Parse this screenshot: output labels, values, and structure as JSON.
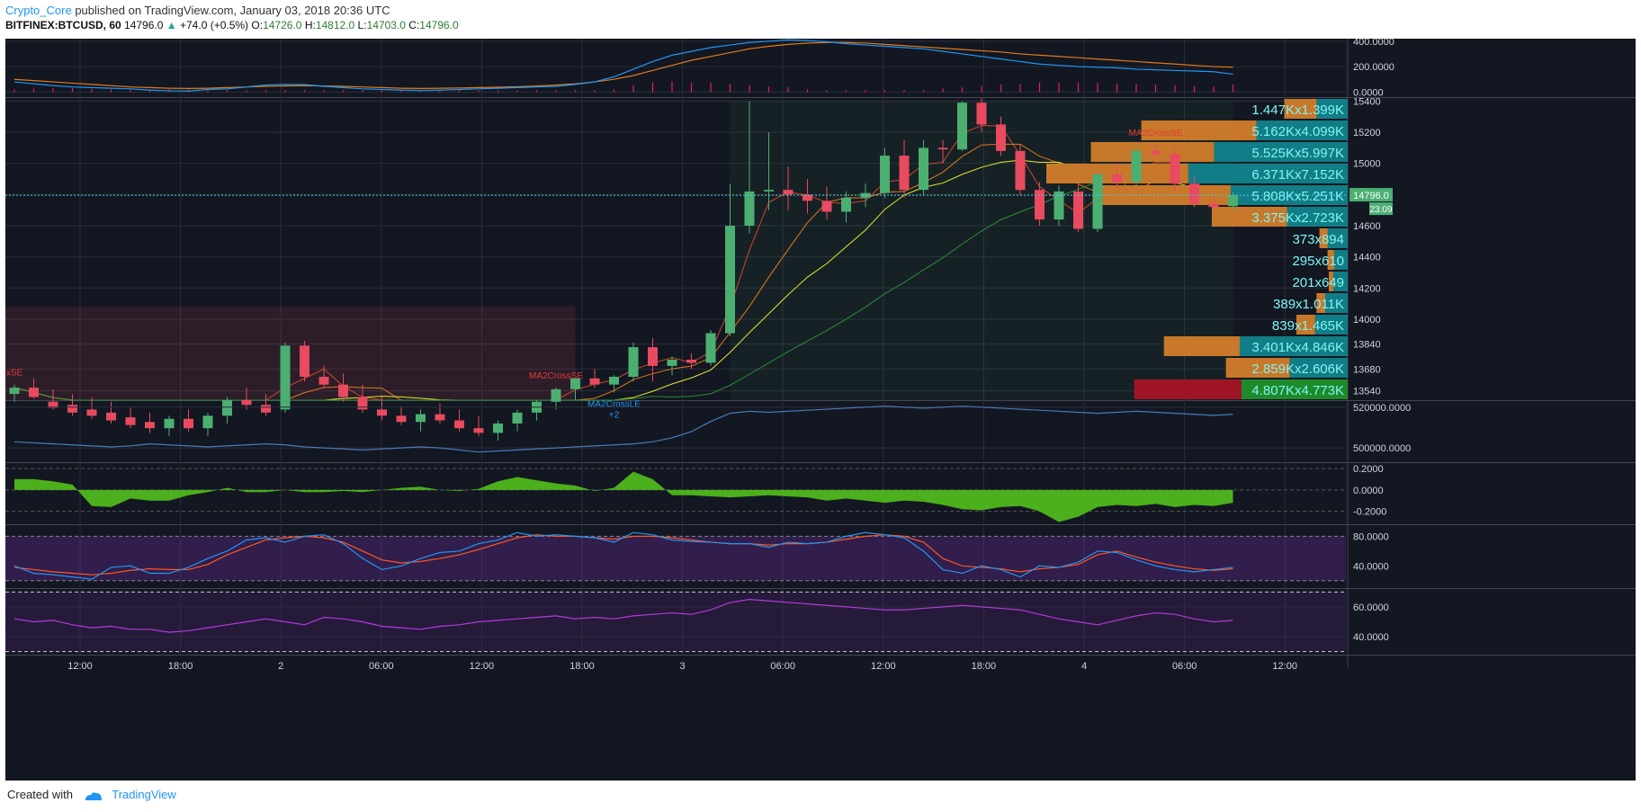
{
  "header": {
    "author": "Crypto_Core",
    "published_text": "published on TradingView.com, January 03, 2018 20:36 UTC",
    "symbol": "BITFINEX:BTCUSD, 60",
    "last": "14796.0",
    "change": "+74.0 (+0.5%)",
    "o_label": "O:",
    "o_value": "14726.0",
    "h_label": "H:",
    "h_value": "14812.0",
    "l_label": "L:",
    "l_value": "14703.0",
    "c_label": "C:",
    "c_value": "14796.0"
  },
  "footer": {
    "created_with": "Created with",
    "brand": "TradingView",
    "logo_icon": "tradingview-cloud-icon"
  },
  "colors": {
    "background": "#131722",
    "grid": "#2a2e39",
    "up": "#4caf72",
    "down": "#e84a5f",
    "volume_profile_up": "#117d86",
    "volume_profile_down": "#c8782a",
    "ma_yellow": "#e6e62c",
    "ma_orange": "#e07b1a",
    "ma_purple": "#b23bd8",
    "osc_green": "#4caf1c",
    "line_blue": "#2196f3"
  },
  "chart_data": {
    "type": "candlestick",
    "symbol": "BITFINEX:BTCUSD",
    "interval": "60",
    "x_tick_labels": [
      "12:00",
      "18:00",
      "2",
      "06:00",
      "12:00",
      "18:00",
      "3",
      "06:00",
      "12:00",
      "18:00",
      "4",
      "06:00",
      "12:00"
    ],
    "candles": [
      {
        "o": 13520,
        "h": 13580,
        "l": 13470,
        "c": 13560
      },
      {
        "o": 13560,
        "h": 13620,
        "l": 13490,
        "c": 13500
      },
      {
        "o": 13470,
        "h": 13550,
        "l": 13420,
        "c": 13430
      },
      {
        "o": 13450,
        "h": 13520,
        "l": 13380,
        "c": 13400
      },
      {
        "o": 13420,
        "h": 13500,
        "l": 13360,
        "c": 13380
      },
      {
        "o": 13400,
        "h": 13470,
        "l": 13330,
        "c": 13350
      },
      {
        "o": 13370,
        "h": 13430,
        "l": 13300,
        "c": 13320
      },
      {
        "o": 13340,
        "h": 13400,
        "l": 13270,
        "c": 13300
      },
      {
        "o": 13300,
        "h": 13380,
        "l": 13250,
        "c": 13360
      },
      {
        "o": 13360,
        "h": 13420,
        "l": 13280,
        "c": 13300
      },
      {
        "o": 13300,
        "h": 13400,
        "l": 13250,
        "c": 13380
      },
      {
        "o": 13380,
        "h": 13500,
        "l": 13330,
        "c": 13480
      },
      {
        "o": 13480,
        "h": 13560,
        "l": 13420,
        "c": 13450
      },
      {
        "o": 13450,
        "h": 13520,
        "l": 13380,
        "c": 13400
      },
      {
        "o": 13420,
        "h": 13850,
        "l": 13400,
        "c": 13830
      },
      {
        "o": 13830,
        "h": 13860,
        "l": 13600,
        "c": 13630
      },
      {
        "o": 13630,
        "h": 13700,
        "l": 13560,
        "c": 13580
      },
      {
        "o": 13580,
        "h": 13650,
        "l": 13470,
        "c": 13500
      },
      {
        "o": 13500,
        "h": 13580,
        "l": 13400,
        "c": 13420
      },
      {
        "o": 13420,
        "h": 13500,
        "l": 13350,
        "c": 13380
      },
      {
        "o": 13380,
        "h": 13440,
        "l": 13320,
        "c": 13340
      },
      {
        "o": 13340,
        "h": 13420,
        "l": 13280,
        "c": 13390
      },
      {
        "o": 13390,
        "h": 13460,
        "l": 13330,
        "c": 13350
      },
      {
        "o": 13350,
        "h": 13420,
        "l": 13280,
        "c": 13300
      },
      {
        "o": 13300,
        "h": 13380,
        "l": 13250,
        "c": 13270
      },
      {
        "o": 13270,
        "h": 13350,
        "l": 13220,
        "c": 13330
      },
      {
        "o": 13330,
        "h": 13420,
        "l": 13280,
        "c": 13400
      },
      {
        "o": 13400,
        "h": 13480,
        "l": 13350,
        "c": 13470
      },
      {
        "o": 13470,
        "h": 13560,
        "l": 13420,
        "c": 13550
      },
      {
        "o": 13550,
        "h": 13620,
        "l": 13480,
        "c": 13620
      },
      {
        "o": 13620,
        "h": 13680,
        "l": 13560,
        "c": 13580
      },
      {
        "o": 13580,
        "h": 13640,
        "l": 13530,
        "c": 13630
      },
      {
        "o": 13630,
        "h": 13850,
        "l": 13600,
        "c": 13820
      },
      {
        "o": 13820,
        "h": 13880,
        "l": 13600,
        "c": 13700
      },
      {
        "o": 13700,
        "h": 13760,
        "l": 13640,
        "c": 13740
      },
      {
        "o": 13740,
        "h": 13780,
        "l": 13680,
        "c": 13720
      },
      {
        "o": 13720,
        "h": 13930,
        "l": 13700,
        "c": 13910
      },
      {
        "o": 13910,
        "h": 14870,
        "l": 13890,
        "c": 14600
      },
      {
        "o": 14600,
        "h": 15400,
        "l": 14550,
        "c": 14820
      },
      {
        "o": 14820,
        "h": 15200,
        "l": 14700,
        "c": 14830
      },
      {
        "o": 14830,
        "h": 14980,
        "l": 14700,
        "c": 14800
      },
      {
        "o": 14800,
        "h": 14900,
        "l": 14680,
        "c": 14760
      },
      {
        "o": 14760,
        "h": 14850,
        "l": 14640,
        "c": 14690
      },
      {
        "o": 14690,
        "h": 14820,
        "l": 14620,
        "c": 14780
      },
      {
        "o": 14780,
        "h": 14870,
        "l": 14720,
        "c": 14810
      },
      {
        "o": 14810,
        "h": 15100,
        "l": 14780,
        "c": 15050
      },
      {
        "o": 15050,
        "h": 15150,
        "l": 14780,
        "c": 14830
      },
      {
        "o": 14830,
        "h": 15150,
        "l": 14800,
        "c": 15100
      },
      {
        "o": 15100,
        "h": 15150,
        "l": 15000,
        "c": 15090
      },
      {
        "o": 15090,
        "h": 15400,
        "l": 15080,
        "c": 15390
      },
      {
        "o": 15390,
        "h": 15420,
        "l": 15200,
        "c": 15250
      },
      {
        "o": 15250,
        "h": 15300,
        "l": 15050,
        "c": 15080
      },
      {
        "o": 15080,
        "h": 15120,
        "l": 14800,
        "c": 14830
      },
      {
        "o": 14830,
        "h": 14880,
        "l": 14600,
        "c": 14640
      },
      {
        "o": 14640,
        "h": 14860,
        "l": 14600,
        "c": 14820
      },
      {
        "o": 14820,
        "h": 14860,
        "l": 14560,
        "c": 14580
      },
      {
        "o": 14580,
        "h": 14950,
        "l": 14560,
        "c": 14930
      },
      {
        "o": 14930,
        "h": 15000,
        "l": 14840,
        "c": 14880
      },
      {
        "o": 14880,
        "h": 15120,
        "l": 14860,
        "c": 15080
      },
      {
        "o": 15080,
        "h": 15120,
        "l": 15040,
        "c": 15060
      },
      {
        "o": 15060,
        "h": 15100,
        "l": 14830,
        "c": 14870
      },
      {
        "o": 14870,
        "h": 14920,
        "l": 14720,
        "c": 14740
      },
      {
        "o": 14740,
        "h": 14790,
        "l": 14700,
        "c": 14720
      },
      {
        "o": 14726,
        "h": 14812,
        "l": 14703,
        "c": 14796
      }
    ],
    "main_axis": {
      "min": 13480,
      "max": 15420,
      "ticks": [
        15400,
        15200,
        15000,
        14800,
        14600,
        14400,
        14200,
        14000,
        13840,
        13680,
        13540
      ]
    },
    "last_price_label": "14796.0",
    "countdown_label": "23:09",
    "volume_profile": [
      {
        "label": "1.447Kx1.399K",
        "up": 1399,
        "down": 1447
      },
      {
        "label": "5.162Kx4.099K",
        "up": 4099,
        "down": 5162
      },
      {
        "label": "5.525Kx5.997K",
        "up": 5997,
        "down": 5525
      },
      {
        "label": "6.371Kx7.152K",
        "up": 7152,
        "down": 6371
      },
      {
        "label": "5.808Kx5.251K",
        "up": 5251,
        "down": 5808
      },
      {
        "label": "3.375Kx2.723K",
        "up": 2723,
        "down": 3375
      },
      {
        "label": "373x894",
        "up": 894,
        "down": 373
      },
      {
        "label": "295x610",
        "up": 610,
        "down": 295
      },
      {
        "label": "201x649",
        "up": 649,
        "down": 201
      },
      {
        "label": "389x1.011K",
        "up": 1011,
        "down": 389
      },
      {
        "label": "839x1.465K",
        "up": 1465,
        "down": 839
      },
      {
        "label": "3.401Kx4.846K",
        "up": 4846,
        "down": 3401
      },
      {
        "label": "2.859Kx2.606K",
        "up": 2606,
        "down": 2859
      },
      {
        "label": "4.807Kx4.773K",
        "up": 4773,
        "down": 4807
      }
    ],
    "signal_labels": [
      {
        "text": "MA2CrossLE",
        "bar": 31,
        "side": "below"
      },
      {
        "text": "+2",
        "bar": 31,
        "side": "below"
      },
      {
        "text": "MA2CrossSE",
        "bar": 28,
        "side": "above"
      },
      {
        "text": "MA2CrossSE",
        "bar": 59,
        "side": "above"
      },
      {
        "text": "xSE",
        "bar": 0,
        "side": "above"
      }
    ],
    "top_panel": {
      "ticks": [
        "400.0000",
        "200.0000",
        "0.0000"
      ],
      "min": -40,
      "max": 420,
      "blue": [
        80,
        65,
        50,
        40,
        35,
        30,
        25,
        15,
        10,
        8,
        20,
        25,
        40,
        55,
        60,
        58,
        45,
        35,
        25,
        20,
        15,
        12,
        15,
        20,
        25,
        30,
        35,
        40,
        45,
        60,
        80,
        120,
        180,
        240,
        290,
        320,
        350,
        370,
        390,
        400,
        410,
        405,
        395,
        380,
        370,
        360,
        350,
        340,
        320,
        300,
        280,
        260,
        240,
        220,
        210,
        200,
        195,
        190,
        180,
        175,
        170,
        165,
        160,
        140
      ],
      "orange": [
        100,
        90,
        80,
        70,
        60,
        50,
        40,
        35,
        30,
        28,
        30,
        35,
        40,
        45,
        48,
        50,
        48,
        45,
        40,
        35,
        30,
        28,
        30,
        32,
        35,
        38,
        42,
        48,
        55,
        65,
        80,
        100,
        130,
        170,
        210,
        250,
        280,
        310,
        340,
        360,
        375,
        385,
        390,
        390,
        385,
        375,
        365,
        355,
        345,
        335,
        325,
        315,
        300,
        290,
        280,
        270,
        260,
        250,
        240,
        230,
        220,
        210,
        200,
        195
      ]
    },
    "volume_panel": {
      "ticks": [
        "520000.0000",
        "500000.0000"
      ],
      "min": 493000,
      "max": 523000,
      "values": [
        503000,
        502500,
        502000,
        501500,
        501000,
        500500,
        501000,
        502000,
        501500,
        501000,
        500500,
        501000,
        501500,
        502000,
        501500,
        500500,
        500000,
        499500,
        499000,
        499500,
        500000,
        500500,
        500000,
        499000,
        498000,
        498500,
        499000,
        499500,
        500000,
        500500,
        501000,
        501500,
        502000,
        503000,
        505000,
        508000,
        513000,
        517000,
        518000,
        517500,
        518000,
        518500,
        519000,
        519500,
        520000,
        520500,
        520000,
        519500,
        520000,
        520500,
        520000,
        519500,
        519000,
        518500,
        518000,
        517500,
        517000,
        517500,
        518000,
        517500,
        517000,
        516500,
        516000,
        516500
      ]
    },
    "oscillator_panel": {
      "ticks": [
        "0.2000",
        "0.0000",
        "-0.2000"
      ],
      "min": -0.32,
      "max": 0.25,
      "values": [
        0.1,
        0.1,
        0.08,
        0.05,
        -0.15,
        -0.16,
        -0.08,
        -0.1,
        -0.1,
        -0.05,
        -0.02,
        0.02,
        -0.02,
        -0.02,
        0.0,
        -0.02,
        -0.02,
        -0.01,
        -0.02,
        0.0,
        0.02,
        0.03,
        0.0,
        -0.01,
        0.01,
        0.08,
        0.12,
        0.09,
        0.06,
        0.04,
        -0.01,
        0.02,
        0.17,
        0.1,
        -0.05,
        -0.05,
        -0.06,
        -0.07,
        -0.06,
        -0.05,
        -0.06,
        -0.07,
        -0.1,
        -0.08,
        -0.1,
        -0.12,
        -0.1,
        -0.11,
        -0.14,
        -0.18,
        -0.19,
        -0.16,
        -0.15,
        -0.2,
        -0.3,
        -0.25,
        -0.16,
        -0.14,
        -0.15,
        -0.13,
        -0.16,
        -0.14,
        -0.15,
        -0.12
      ]
    },
    "stoch_panel": {
      "ticks": [
        "80.0000",
        "40.0000"
      ],
      "min": 10,
      "max": 95,
      "blue": [
        40,
        30,
        28,
        25,
        22,
        38,
        40,
        30,
        30,
        38,
        50,
        60,
        75,
        78,
        72,
        80,
        82,
        70,
        50,
        35,
        40,
        50,
        58,
        60,
        70,
        75,
        85,
        80,
        82,
        80,
        78,
        72,
        85,
        82,
        75,
        73,
        72,
        70,
        70,
        65,
        72,
        70,
        72,
        80,
        85,
        82,
        78,
        60,
        35,
        30,
        40,
        35,
        25,
        40,
        38,
        45,
        60,
        58,
        48,
        40,
        35,
        32,
        35,
        38
      ],
      "orange": [
        38,
        35,
        32,
        30,
        28,
        30,
        34,
        36,
        35,
        35,
        42,
        55,
        65,
        75,
        78,
        80,
        78,
        72,
        60,
        48,
        44,
        46,
        50,
        55,
        62,
        70,
        78,
        82,
        80,
        80,
        78,
        76,
        80,
        80,
        78,
        75,
        72,
        70,
        70,
        68,
        70,
        70,
        72,
        76,
        80,
        82,
        80,
        72,
        50,
        40,
        38,
        36,
        32,
        36,
        38,
        42,
        55,
        60,
        52,
        45,
        40,
        36,
        34,
        36
      ]
    },
    "rsi_panel": {
      "ticks": [
        "60.0000",
        "40.0000"
      ],
      "min": 28,
      "max": 72,
      "values": [
        52,
        50,
        51,
        48,
        46,
        47,
        45,
        45,
        43,
        44,
        46,
        48,
        50,
        52,
        50,
        48,
        53,
        52,
        50,
        47,
        46,
        45,
        47,
        48,
        50,
        51,
        52,
        53,
        54,
        52,
        53,
        52,
        54,
        55,
        56,
        55,
        58,
        63,
        65,
        64,
        63,
        62,
        61,
        60,
        59,
        58,
        58,
        59,
        60,
        61,
        60,
        59,
        58,
        55,
        52,
        50,
        48,
        51,
        54,
        56,
        55,
        52,
        50,
        51
      ]
    }
  }
}
